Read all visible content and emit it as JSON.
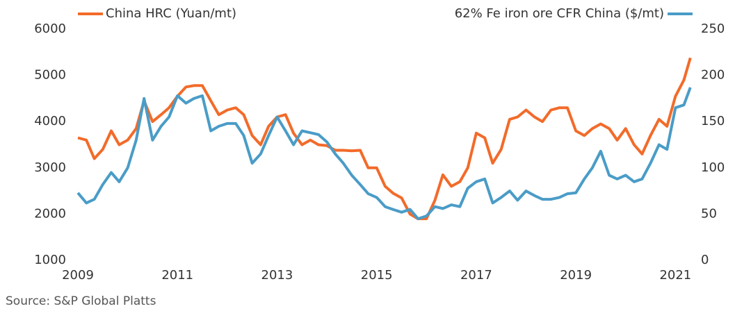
{
  "chart_data": {
    "type": "line",
    "legend": "top",
    "source": "Source: S&P Global Platts",
    "x": [
      2009.0,
      2009.17,
      2009.33,
      2009.5,
      2009.67,
      2009.83,
      2010.0,
      2010.17,
      2010.33,
      2010.5,
      2010.67,
      2010.83,
      2011.0,
      2011.17,
      2011.33,
      2011.5,
      2011.67,
      2011.83,
      2012.0,
      2012.17,
      2012.33,
      2012.5,
      2012.67,
      2012.83,
      2013.0,
      2013.17,
      2013.33,
      2013.5,
      2013.67,
      2013.83,
      2014.0,
      2014.17,
      2014.33,
      2014.5,
      2014.67,
      2014.83,
      2015.0,
      2015.17,
      2015.33,
      2015.5,
      2015.67,
      2015.83,
      2016.0,
      2016.17,
      2016.33,
      2016.5,
      2016.67,
      2016.83,
      2017.0,
      2017.17,
      2017.33,
      2017.5,
      2017.67,
      2017.83,
      2018.0,
      2018.17,
      2018.33,
      2018.5,
      2018.67,
      2018.83,
      2019.0,
      2019.17,
      2019.33,
      2019.5,
      2019.67,
      2019.83,
      2020.0,
      2020.17,
      2020.33,
      2020.5,
      2020.67,
      2020.83,
      2021.0,
      2021.17,
      2021.3
    ],
    "series": [
      {
        "name": "China HRC (Yuan/mt)",
        "color": "#f26b2a",
        "axis": "y",
        "values": [
          3650,
          3600,
          3200,
          3400,
          3800,
          3500,
          3600,
          3850,
          4450,
          4000,
          4150,
          4300,
          4550,
          4750,
          4780,
          4780,
          4450,
          4150,
          4250,
          4300,
          4150,
          3700,
          3500,
          3900,
          4100,
          4150,
          3750,
          3500,
          3600,
          3500,
          3480,
          3380,
          3380,
          3370,
          3380,
          3000,
          3000,
          2600,
          2450,
          2350,
          2000,
          1900,
          1900,
          2300,
          2850,
          2600,
          2700,
          3000,
          3750,
          3650,
          3100,
          3400,
          4050,
          4100,
          4250,
          4100,
          4000,
          4250,
          4300,
          4300,
          3800,
          3700,
          3850,
          3950,
          3850,
          3600,
          3850,
          3500,
          3300,
          3700,
          4050,
          3900,
          4550,
          4900,
          5380
        ]
      },
      {
        "name": "62% Fe iron ore CFR China ($/mt)",
        "color": "#4a9cc7",
        "axis": "y2",
        "values": [
          73,
          62,
          66,
          82,
          95,
          85,
          100,
          130,
          175,
          130,
          145,
          155,
          178,
          170,
          175,
          178,
          140,
          145,
          148,
          148,
          135,
          105,
          115,
          135,
          155,
          140,
          125,
          140,
          138,
          136,
          128,
          115,
          105,
          92,
          82,
          72,
          68,
          58,
          55,
          52,
          55,
          45,
          48,
          58,
          56,
          60,
          58,
          78,
          85,
          88,
          62,
          68,
          75,
          65,
          75,
          70,
          66,
          66,
          68,
          72,
          73,
          88,
          100,
          118,
          92,
          88,
          92,
          85,
          88,
          105,
          125,
          120,
          165,
          168,
          187
        ]
      }
    ],
    "xlim": [
      2009,
      2021.4
    ],
    "xticks": [
      2009,
      2011,
      2013,
      2015,
      2017,
      2019,
      2021
    ],
    "ylim": [
      1000,
      6000
    ],
    "yticks": [
      1000,
      2000,
      3000,
      4000,
      5000,
      6000
    ],
    "y2lim": [
      0,
      250
    ],
    "y2ticks": [
      0,
      50,
      100,
      150,
      200,
      250
    ]
  }
}
